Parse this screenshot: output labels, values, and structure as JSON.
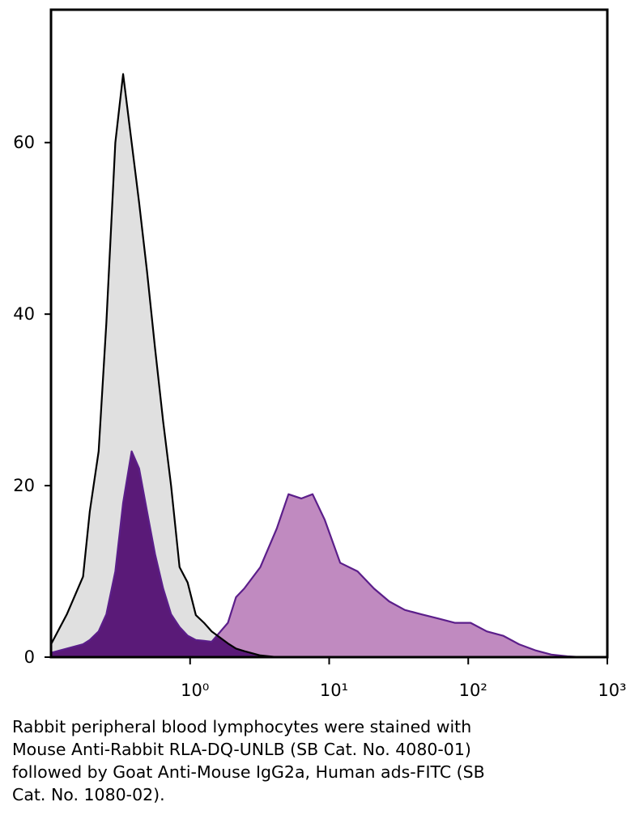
{
  "chart_data": {
    "type": "area",
    "x": [
      0.1,
      0.13,
      0.17,
      0.19,
      0.22,
      0.25,
      0.29,
      0.33,
      0.38,
      0.43,
      0.49,
      0.56,
      0.64,
      0.73,
      0.84,
      0.96,
      1.1,
      1.26,
      1.43,
      1.87,
      2.14,
      2.45,
      3.2,
      4.2,
      5.1,
      6.3,
      7.6,
      9.3,
      12,
      16,
      21,
      27,
      35,
      46,
      61,
      80,
      104,
      136,
      178,
      232,
      303,
      395,
      516,
      650
    ],
    "series": [
      {
        "color": "#000000",
        "fill": "#e0e0e0",
        "values": [
          1.5,
          5,
          9.4,
          17,
          24,
          39,
          60,
          68,
          60,
          53,
          45,
          36,
          27.5,
          20,
          10.5,
          8.7,
          4.9,
          4,
          3,
          1.6,
          1,
          0.7,
          0.2,
          0,
          0,
          0,
          0,
          0,
          0,
          0,
          0,
          0,
          0,
          0,
          0,
          0,
          0,
          0,
          0,
          0,
          0,
          0,
          0,
          0
        ]
      },
      {
        "color": "#5b1e8a",
        "fill": "#c08ac0",
        "overlap_fill": "#5a1a78",
        "values": [
          0.5,
          1,
          1.5,
          2,
          3,
          5,
          10,
          18,
          24,
          22,
          17,
          12,
          8,
          5,
          3.5,
          2.5,
          2,
          1.9,
          1.8,
          4,
          7,
          8,
          10.5,
          15,
          19,
          18.5,
          19,
          16,
          11,
          10,
          8,
          6.5,
          5.5,
          5,
          4.5,
          4,
          4,
          3,
          2.5,
          1.5,
          0.8,
          0.3,
          0.1,
          0
        ]
      }
    ],
    "xlim": [
      0.1,
      1000
    ],
    "xscale": "log",
    "xticks": [
      {
        "value": 1,
        "label": "10⁰"
      },
      {
        "value": 10,
        "label": "10¹"
      },
      {
        "value": 100,
        "label": "10²"
      },
      {
        "value": 1000,
        "label": "10³"
      }
    ],
    "ylim": [
      0,
      75.5
    ],
    "yticks": [
      0,
      20,
      40,
      60
    ]
  },
  "caption": [
    "Rabbit peripheral blood lymphocytes were stained with",
    "Mouse Anti-Rabbit RLA-DQ-UNLB (SB Cat. No. 4080-01)",
    "followed by Goat Anti-Mouse IgG2a, Human ads-FITC (SB",
    "Cat. No. 1080-02)."
  ]
}
